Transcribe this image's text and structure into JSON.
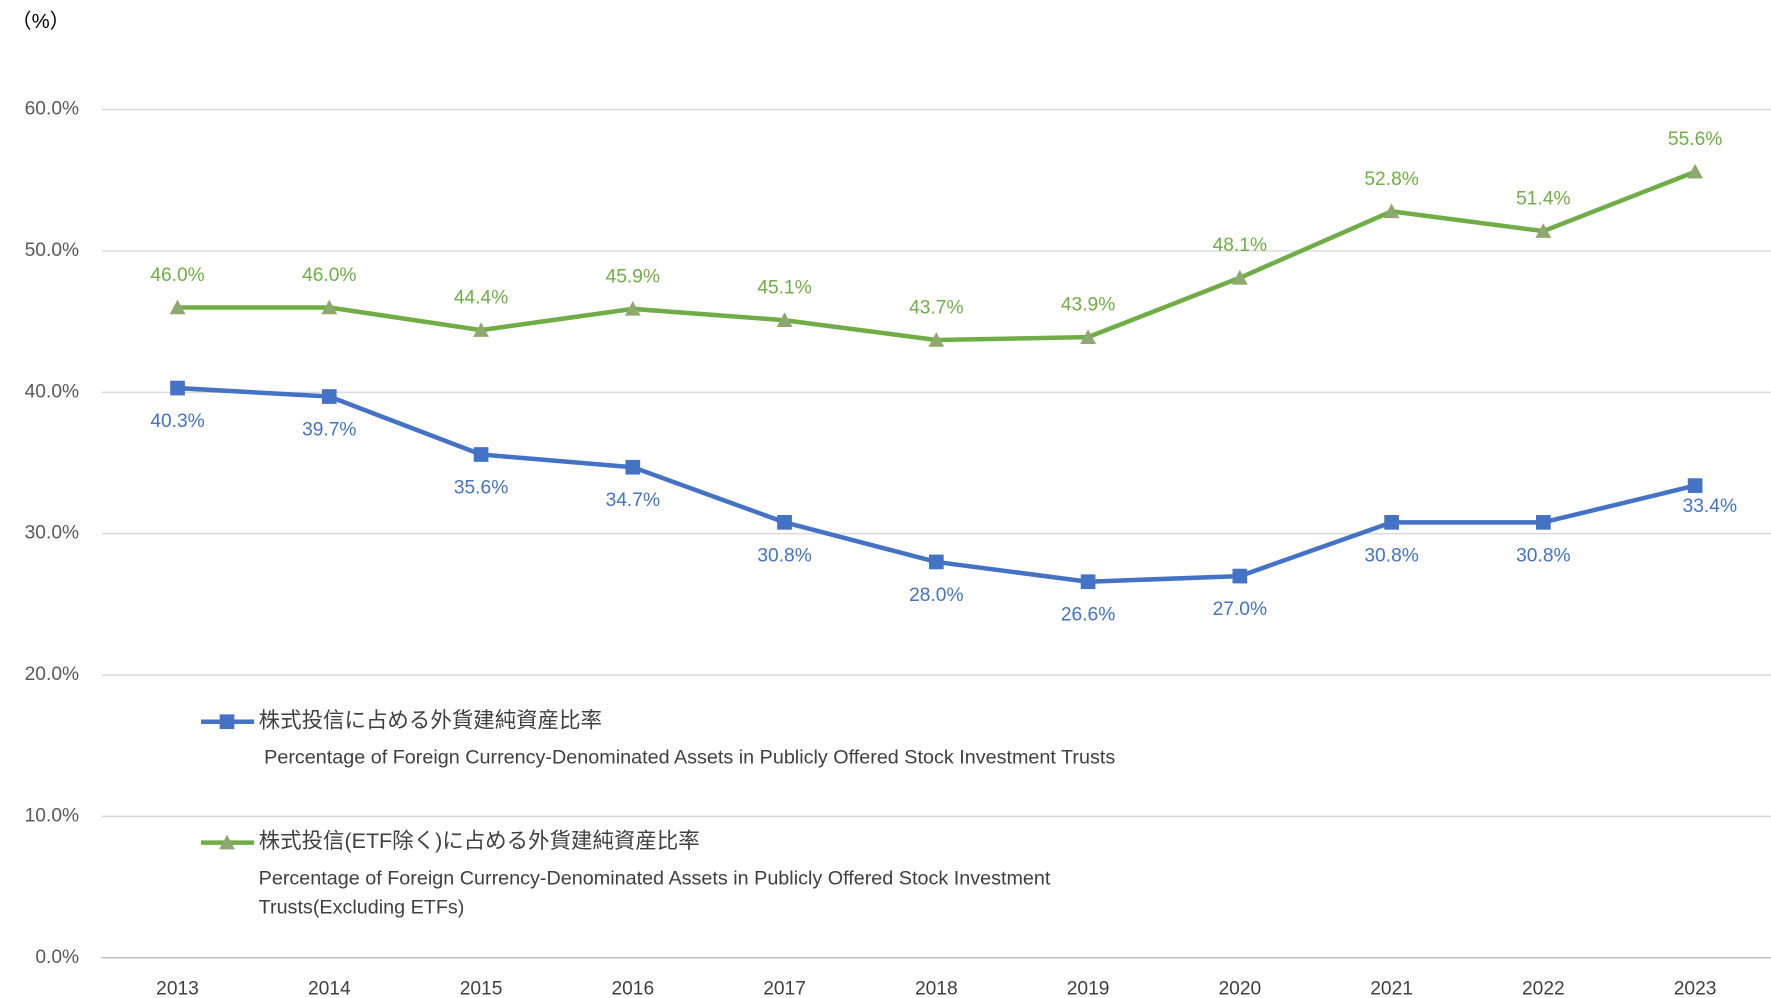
{
  "chart_data": {
    "type": "line",
    "y_unit": "（%）",
    "categories": [
      "2013",
      "2014",
      "2015",
      "2016",
      "2017",
      "2018",
      "2019",
      "2020",
      "2021",
      "2022",
      "2023"
    ],
    "series": [
      {
        "name": "株式投信に占める外貨建純資産比率",
        "description": " Percentage of Foreign Currency-Denominated Assets in Publicly Offered Stock Investment Trusts",
        "color": "#4472c4",
        "marker": "square",
        "marker_color": "#4472c4",
        "values": [
          40.3,
          39.7,
          35.6,
          34.7,
          30.8,
          28.0,
          26.6,
          27.0,
          30.8,
          30.8,
          33.4
        ],
        "value_labels": [
          "40.3%",
          "39.7%",
          "35.6%",
          "34.7%",
          "30.8%",
          "28.0%",
          "26.6%",
          "27.0%",
          "30.8%",
          "30.8%",
          "33.4%"
        ]
      },
      {
        "name": "株式投信(ETF除く)に占める外貨建純資産比率",
        "description": "Percentage of Foreign Currency-Denominated Assets in Publicly Offered Stock Investment Trusts(Excluding ETFs)",
        "color": "#70ad47",
        "marker": "triangle",
        "marker_color": "#8fa86f",
        "values": [
          46.0,
          46.0,
          44.4,
          45.9,
          45.1,
          43.7,
          43.9,
          48.1,
          52.8,
          51.4,
          55.6
        ],
        "value_labels": [
          "46.0%",
          "46.0%",
          "44.4%",
          "45.9%",
          "45.1%",
          "43.7%",
          "43.9%",
          "48.1%",
          "52.8%",
          "51.4%",
          "55.6%"
        ]
      }
    ],
    "ylim": [
      0,
      60
    ],
    "yticks": [
      {
        "value": 0,
        "label": "0.0%"
      },
      {
        "value": 10,
        "label": "10.0%"
      },
      {
        "value": 20,
        "label": "20.0%"
      },
      {
        "value": 30,
        "label": "30.0%"
      },
      {
        "value": 40,
        "label": "40.0%"
      },
      {
        "value": 50,
        "label": "50.0%"
      },
      {
        "value": 60,
        "label": "60.0%"
      }
    ],
    "grid": true
  }
}
